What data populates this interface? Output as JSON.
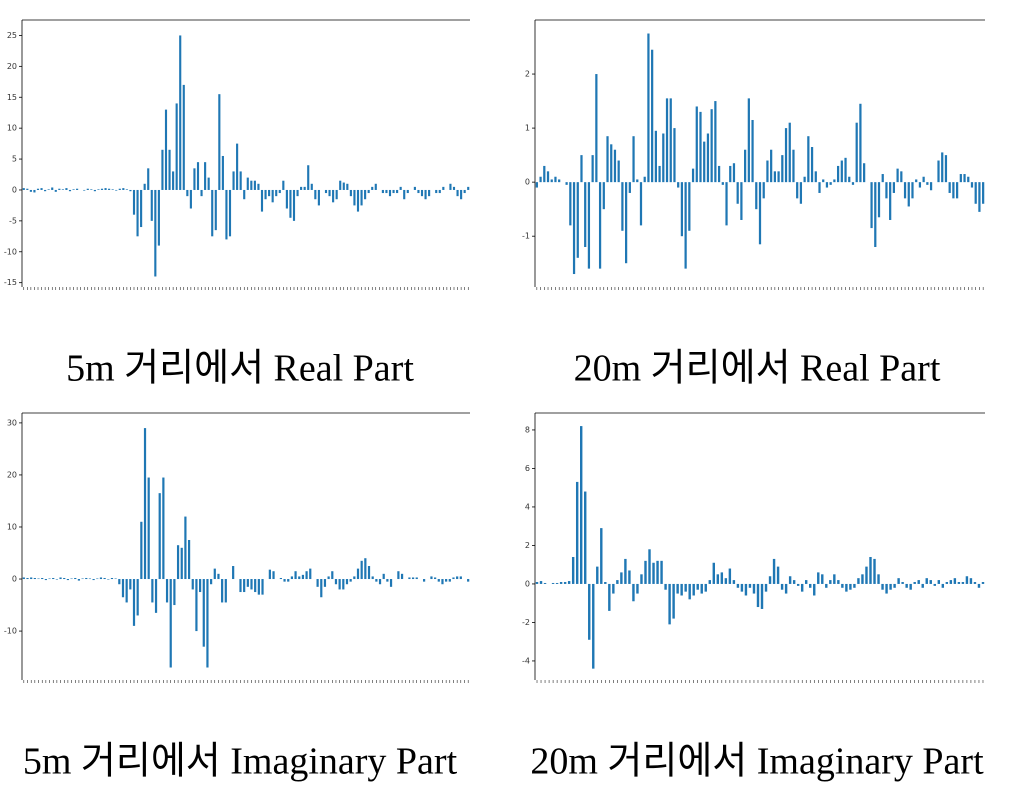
{
  "chart_data": [
    {
      "type": "bar",
      "title": "5m 거리에서 Real Part",
      "color": "#1f77b4",
      "ylim": [
        -15.7,
        27.5
      ],
      "yticks": [
        -15,
        -10,
        -5,
        0,
        5,
        10,
        15,
        20,
        25
      ],
      "values": [
        0.3,
        0.2,
        -0.3,
        -0.4,
        0.2,
        0.3,
        -0.2,
        0.1,
        0.4,
        -0.3,
        0.2,
        0.1,
        0.3,
        -0.2,
        0.1,
        0.2,
        0,
        -0.1,
        0.2,
        0.1,
        -0.2,
        0.1,
        0.2,
        0.3,
        0.2,
        0.1,
        -0.1,
        0.2,
        0.3,
        0.1,
        -0.2,
        -4,
        -7.5,
        -6,
        1,
        3.5,
        -5,
        -14,
        -9,
        6.5,
        13,
        6.5,
        3,
        14,
        25,
        17,
        -1,
        -3,
        3.5,
        4.5,
        -1,
        4.5,
        2,
        -7.5,
        -6.5,
        15.5,
        5.5,
        -8,
        -7.5,
        3,
        7.5,
        3,
        -1.5,
        2,
        1.5,
        1.5,
        1,
        -3.5,
        -1.5,
        -1,
        -2,
        -1,
        -0.5,
        1.5,
        -3,
        -4.5,
        -5,
        -1,
        0.5,
        0.5,
        4,
        1,
        -1.5,
        -2.5,
        0,
        -0.5,
        -1,
        -2,
        -1.5,
        1.5,
        1.2,
        1,
        -1,
        -2.5,
        -3.5,
        -2.5,
        -1.5,
        -0.5,
        0.5,
        1,
        0,
        -0.5,
        -0.5,
        -1,
        -0.5,
        -0.5,
        0.5,
        -1.5,
        -0.5,
        0,
        0.5,
        -0.5,
        -1,
        -1.5,
        -1,
        0,
        -0.5,
        -0.5,
        0.5,
        0,
        1,
        0.5,
        -1,
        -1.5,
        -0.5,
        0.5
      ]
    },
    {
      "type": "bar",
      "title": "20m 거리에서 Real Part",
      "color": "#1f77b4",
      "ylim": [
        -1.94,
        3.0
      ],
      "yticks": [
        -1,
        0,
        1,
        2
      ],
      "values": [
        -0.1,
        0.1,
        0.3,
        0.2,
        0.05,
        0.1,
        0.05,
        0,
        -0.05,
        -0.8,
        -1.7,
        -1.4,
        0.5,
        -1.2,
        -1.6,
        0.5,
        2,
        -1.6,
        -0.5,
        0.85,
        0.7,
        0.6,
        0.4,
        -0.9,
        -1.5,
        -0.2,
        0.85,
        0.05,
        -0.8,
        0.1,
        2.75,
        2.45,
        0.95,
        0.3,
        0.9,
        1.55,
        1.55,
        1,
        -0.1,
        -1,
        -1.6,
        -0.9,
        0.25,
        1.4,
        1.3,
        0.75,
        0.9,
        1.35,
        1.5,
        0.3,
        -0.05,
        -0.8,
        0.3,
        0.35,
        -0.4,
        -0.7,
        0.6,
        1.55,
        1.15,
        -0.5,
        -1.15,
        -0.3,
        0.4,
        0.6,
        0.2,
        0.2,
        0.5,
        1,
        1.1,
        0.6,
        -0.3,
        -0.4,
        0.1,
        0.85,
        0.65,
        0.2,
        -0.2,
        0.05,
        -0.1,
        -0.05,
        0.05,
        0.3,
        0.4,
        0.45,
        0.1,
        -0.05,
        1.1,
        1.45,
        0.35,
        0,
        -0.85,
        -1.2,
        -0.65,
        0.15,
        -0.3,
        -0.7,
        -0.2,
        0.25,
        0.2,
        -0.3,
        -0.45,
        -0.3,
        0.05,
        -0.1,
        0.1,
        -0.05,
        -0.15,
        0,
        0.4,
        0.55,
        0.5,
        -0.2,
        -0.3,
        -0.3,
        0.15,
        0.15,
        0.1,
        -0.1,
        -0.4,
        -0.55,
        -0.4
      ]
    },
    {
      "type": "bar",
      "title": "5m 거리에서 Imaginary Part",
      "color": "#1f77b4",
      "ylim": [
        -19.4,
        31.9
      ],
      "yticks": [
        -10,
        0,
        10,
        20,
        30
      ],
      "values": [
        0.3,
        0.2,
        0.3,
        0.2,
        0.1,
        0.2,
        -0.2,
        0.1,
        0.2,
        -0.1,
        0.3,
        0.2,
        -0.2,
        0.1,
        0.2,
        -0.3,
        0.1,
        0.2,
        0.1,
        -0.2,
        0.1,
        0.3,
        0.2,
        -0.1,
        0.2,
        0.1,
        -1,
        -3.5,
        -4.5,
        -2,
        -9,
        -7,
        11,
        29,
        19.5,
        -4.5,
        -6.5,
        16.5,
        19.5,
        -4.5,
        -17,
        -5,
        6.5,
        6,
        12,
        7.5,
        -2,
        -10,
        -2.5,
        -13,
        -17,
        -1,
        2,
        1,
        -4.5,
        -4.5,
        0,
        2.5,
        0,
        -2.5,
        -2.5,
        -1.5,
        -2,
        -2.5,
        -3,
        -3,
        0,
        1.8,
        1.5,
        0,
        0.2,
        -0.5,
        -0.5,
        0.5,
        1.5,
        0.5,
        0.8,
        1.5,
        2,
        0,
        -1.5,
        -3.5,
        -1.5,
        0.5,
        1.5,
        -1,
        -2,
        -2,
        -1,
        -0.5,
        0.5,
        2,
        3.5,
        4,
        2.5,
        0.5,
        -0.5,
        -1,
        1,
        -0.5,
        -1.5,
        0,
        1.5,
        1,
        0,
        0.3,
        0.3,
        0.3,
        0,
        -0.5,
        0,
        0.5,
        0.3,
        -0.5,
        -1,
        -0.5,
        -0.5,
        0.3,
        0.5,
        0.5,
        0,
        -0.5
      ]
    },
    {
      "type": "bar",
      "title": "20m 거리에서 Imaginary Part",
      "color": "#1f77b4",
      "ylim": [
        -4.99,
        8.88
      ],
      "yticks": [
        -4,
        -2,
        0,
        2,
        4,
        6,
        8
      ],
      "values": [
        0.1,
        0.15,
        0.05,
        0,
        0.05,
        0.05,
        0.1,
        0.1,
        0.15,
        1.4,
        5.3,
        8.2,
        4.8,
        -2.9,
        -4.4,
        0.9,
        2.9,
        0.1,
        -1.4,
        -0.5,
        0.2,
        0.6,
        1.3,
        0.7,
        -0.9,
        -0.5,
        0.5,
        1.2,
        1.8,
        1.1,
        1.2,
        1.2,
        -0.3,
        -2.1,
        -1.8,
        -0.5,
        -0.6,
        -0.4,
        -0.8,
        -0.6,
        -0.3,
        -0.5,
        -0.4,
        0.2,
        1.1,
        0.5,
        0.6,
        0.3,
        0.8,
        0.2,
        -0.2,
        -0.4,
        -0.6,
        -0.2,
        -0.5,
        -1.2,
        -1.3,
        -0.4,
        0.4,
        1.3,
        0.9,
        -0.3,
        -0.5,
        0.4,
        0.2,
        -0.1,
        -0.4,
        0.2,
        -0.2,
        -0.6,
        0.6,
        0.5,
        -0.2,
        0.2,
        0.5,
        0.2,
        -0.2,
        -0.4,
        -0.3,
        -0.2,
        0.3,
        0.5,
        0.9,
        1.4,
        1.3,
        0.5,
        -0.3,
        -0.5,
        -0.3,
        -0.2,
        0.3,
        0.1,
        -0.2,
        -0.3,
        0.1,
        0.2,
        -0.2,
        0.3,
        0.2,
        -0.1,
        0.2,
        -0.2,
        0.1,
        0.2,
        0.3,
        0.1,
        0.1,
        0.4,
        0.3,
        0.1,
        -0.2,
        0.1
      ]
    }
  ]
}
